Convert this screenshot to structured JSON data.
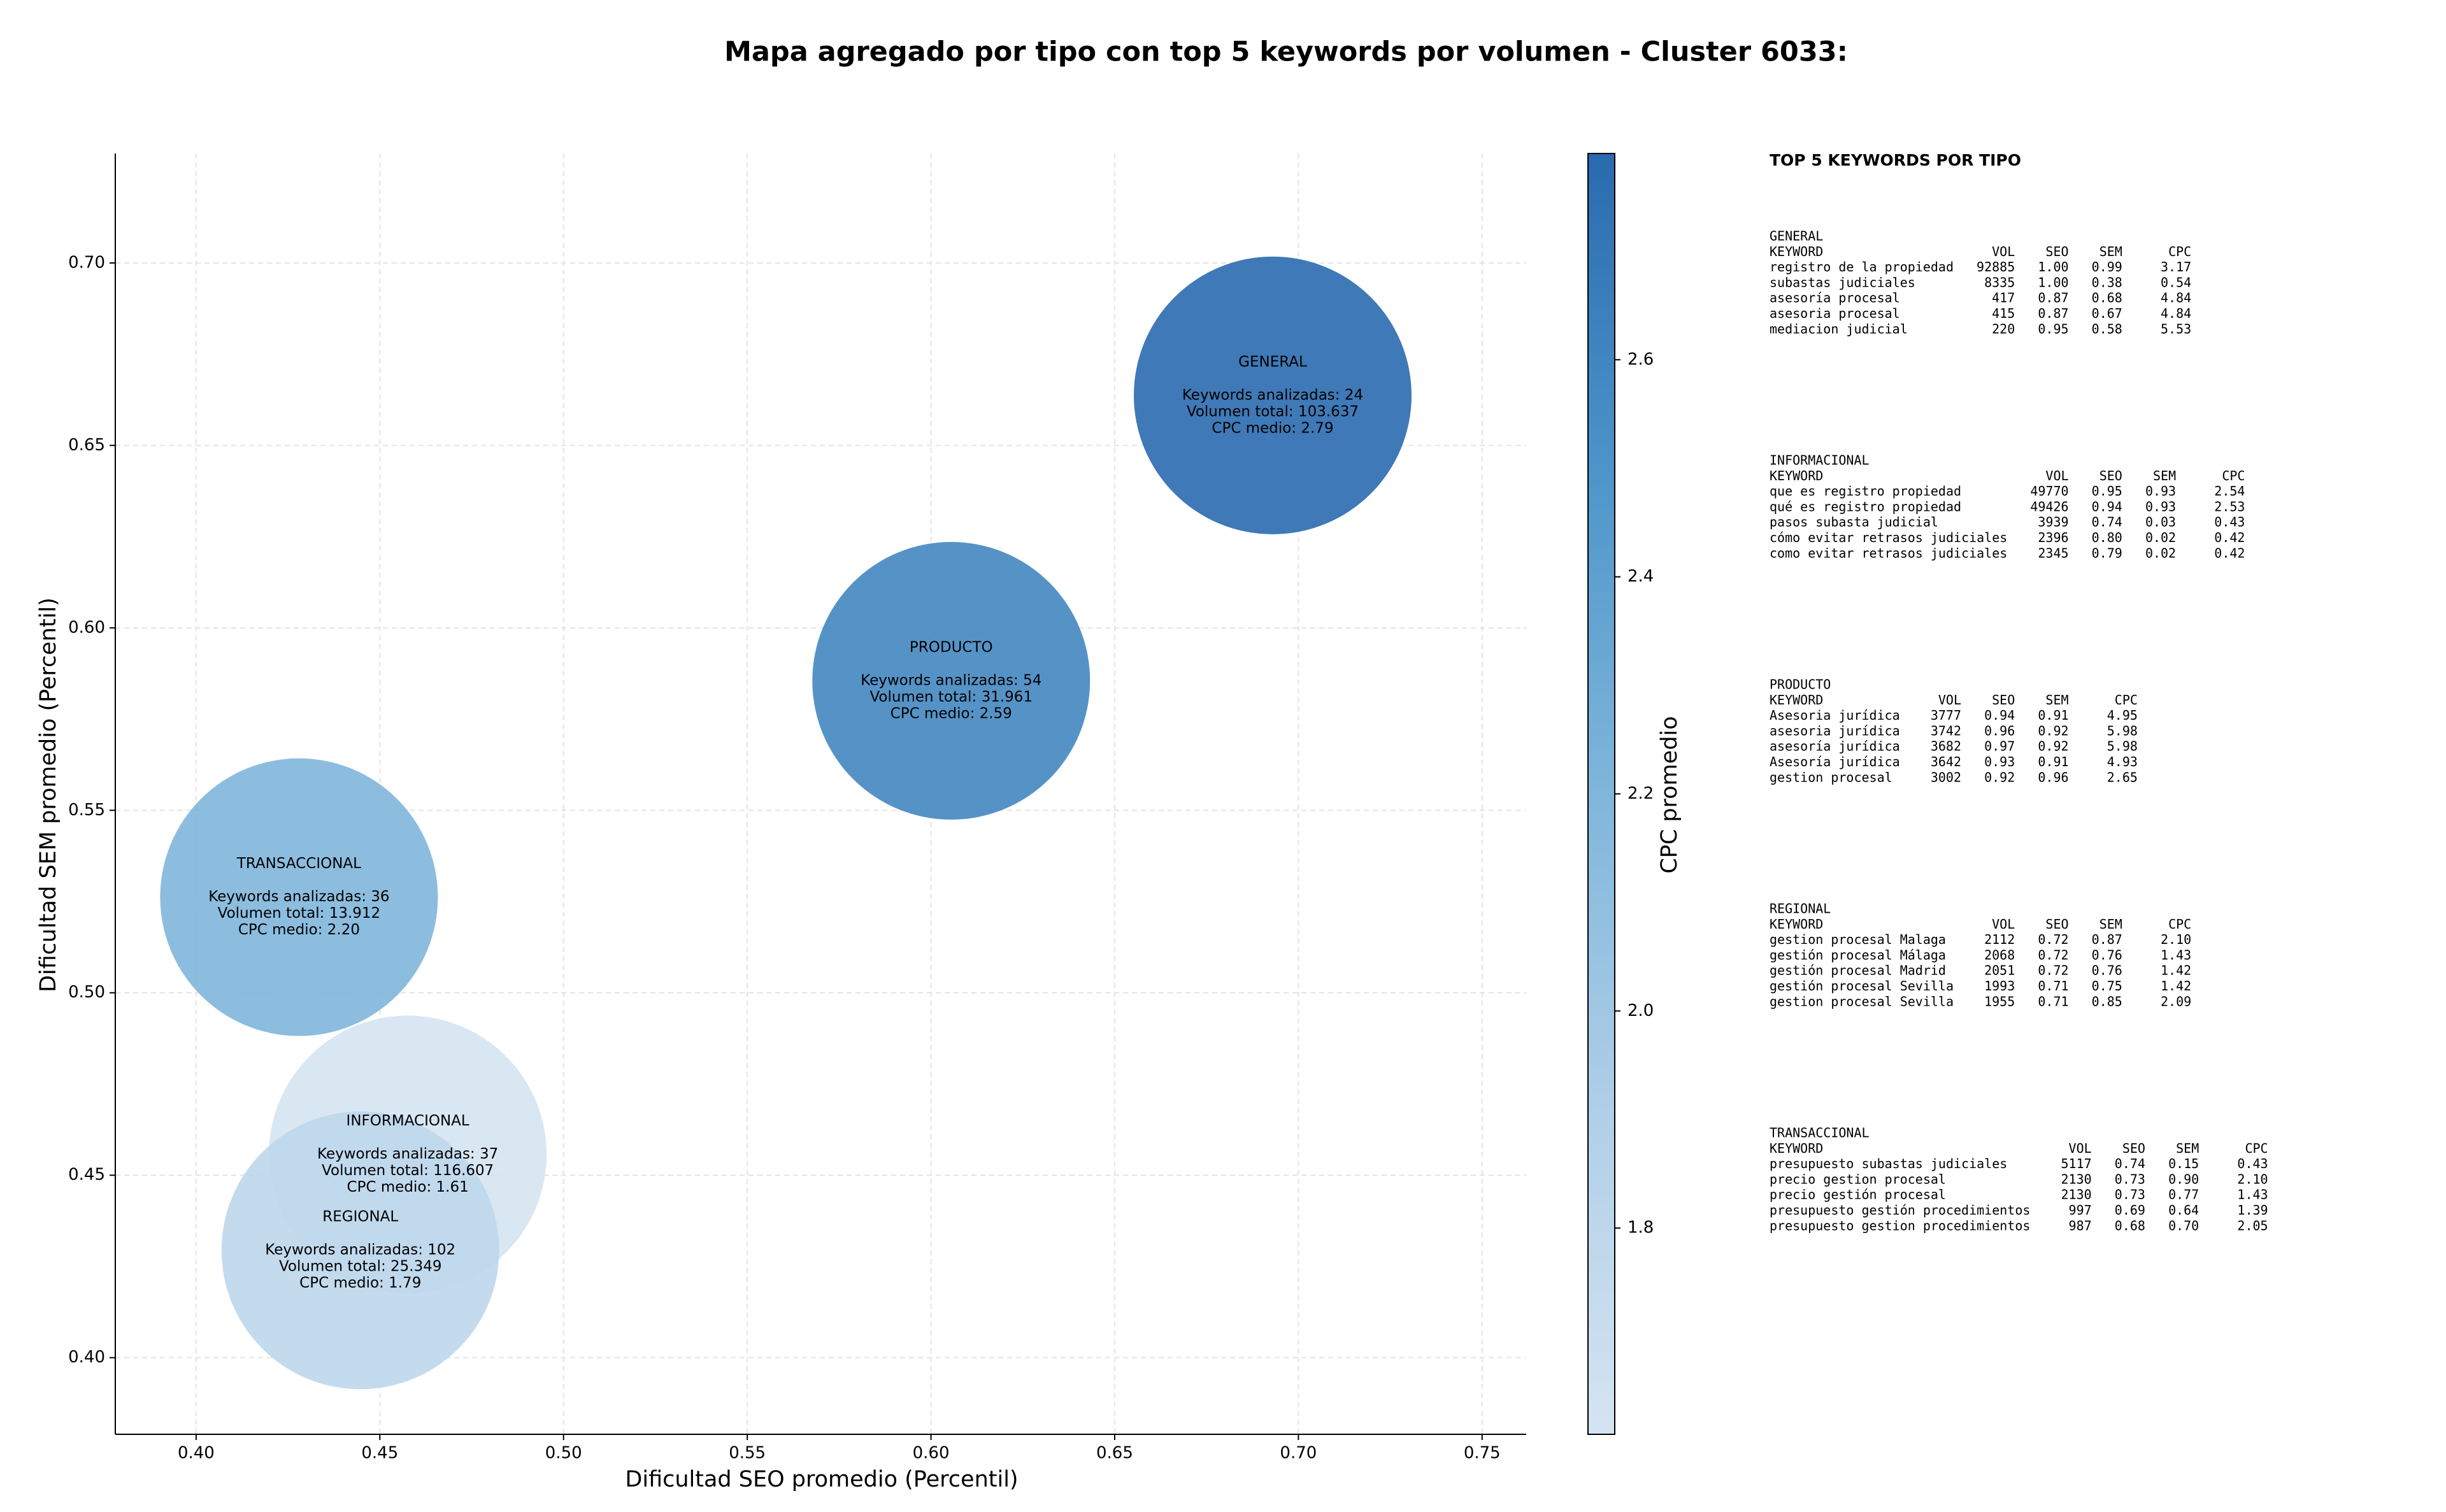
{
  "chart_data": {
    "type": "scatter",
    "title": "Mapa agregado por tipo con top 5 keywords por volumen - Cluster 6033:",
    "x_label": "Dificultad SEO promedio (Percentil)",
    "y_label": "Dificultad SEM promedio (Percentil)",
    "colorbar_label": "CPC promedio",
    "categories": [
      "GENERAL",
      "INFORMACIONAL",
      "PRODUCTO",
      "REGIONAL",
      "TRANSACCIONAL"
    ],
    "x": [
      0.693,
      0.4576,
      0.6055,
      0.4447,
      0.428
    ],
    "values": [
      0.6637,
      0.4557,
      0.5855,
      0.4294,
      0.5262
    ],
    "cpc": [
      2.79,
      1.61,
      2.59,
      1.79,
      2.2
    ],
    "annotations": [
      [
        "Keywords analizadas: 24",
        "Volumen total: 103.637",
        "CPC medio: 2.79"
      ],
      [
        "Keywords analizadas: 37",
        "Volumen total: 116.607",
        "CPC medio: 1.61"
      ],
      [
        "Keywords analizadas: 54",
        "Volumen total: 31.961",
        "CPC medio: 2.59"
      ],
      [
        "Keywords analizadas: 102",
        "Volumen total: 25.349",
        "CPC medio: 1.79"
      ],
      [
        "Keywords analizadas: 36",
        "Volumen total: 13.912",
        "CPC medio: 2.20"
      ]
    ],
    "xlim": [
      0.378,
      0.762
    ],
    "ylim": [
      0.379,
      0.73
    ],
    "clim": [
      1.61,
      2.79
    ],
    "xticks": [
      {
        "value": 0.4,
        "label": "0.40"
      },
      {
        "value": 0.45,
        "label": "0.45"
      },
      {
        "value": 0.5,
        "label": "0.50"
      },
      {
        "value": 0.55,
        "label": "0.55"
      },
      {
        "value": 0.6,
        "label": "0.60"
      },
      {
        "value": 0.65,
        "label": "0.65"
      },
      {
        "value": 0.7,
        "label": "0.70"
      },
      {
        "value": 0.75,
        "label": "0.75"
      }
    ],
    "yticks": [
      {
        "value": 0.4,
        "label": "0.40"
      },
      {
        "value": 0.45,
        "label": "0.45"
      },
      {
        "value": 0.5,
        "label": "0.50"
      },
      {
        "value": 0.55,
        "label": "0.55"
      },
      {
        "value": 0.6,
        "label": "0.60"
      },
      {
        "value": 0.65,
        "label": "0.65"
      },
      {
        "value": 0.7,
        "label": "0.70"
      }
    ],
    "cticks": [
      1.8,
      {
        "value": 2.0,
        "label": "2.0"
      },
      2.2,
      2.4,
      2.6
    ],
    "grid": true,
    "colormap": [
      "#d5e4f2",
      "#b0cfe8",
      "#80b6db",
      "#4d95ca",
      "#2a6aaf"
    ]
  },
  "panel": {
    "title": "TOP 5 KEYWORDS POR TIPO",
    "columns": [
      "KEYWORD",
      "VOL",
      "SEO",
      "SEM",
      "CPC"
    ],
    "blocks": [
      {
        "name": "GENERAL",
        "rows": [
          [
            "registro de la propiedad",
            "92885",
            "1.00",
            "0.99",
            "3.17"
          ],
          [
            "subastas judiciales",
            "8335",
            "1.00",
            "0.38",
            "0.54"
          ],
          [
            "asesoría procesal",
            "417",
            "0.87",
            "0.68",
            "4.84"
          ],
          [
            "asesoria procesal",
            "415",
            "0.87",
            "0.67",
            "4.84"
          ],
          [
            "mediacion judicial",
            "220",
            "0.95",
            "0.58",
            "5.53"
          ]
        ]
      },
      {
        "name": "INFORMACIONAL",
        "rows": [
          [
            "que es registro propiedad",
            "49770",
            "0.95",
            "0.93",
            "2.54"
          ],
          [
            "qué es registro propiedad",
            "49426",
            "0.94",
            "0.93",
            "2.53"
          ],
          [
            "pasos subasta judicial",
            "3939",
            "0.74",
            "0.03",
            "0.43"
          ],
          [
            "cómo evitar retrasos judiciales",
            "2396",
            "0.80",
            "0.02",
            "0.42"
          ],
          [
            "como evitar retrasos judiciales",
            "2345",
            "0.79",
            "0.02",
            "0.42"
          ]
        ]
      },
      {
        "name": "PRODUCTO",
        "rows": [
          [
            "Asesoria jurídica",
            "3777",
            "0.94",
            "0.91",
            "4.95"
          ],
          [
            "asesoria jurídica",
            "3742",
            "0.96",
            "0.92",
            "5.98"
          ],
          [
            "asesoría jurídica",
            "3682",
            "0.97",
            "0.92",
            "5.98"
          ],
          [
            "Asesoría jurídica",
            "3642",
            "0.93",
            "0.91",
            "4.93"
          ],
          [
            "gestion procesal",
            "3002",
            "0.92",
            "0.96",
            "2.65"
          ]
        ]
      },
      {
        "name": "REGIONAL",
        "rows": [
          [
            "gestion procesal Malaga",
            "2112",
            "0.72",
            "0.87",
            "2.10"
          ],
          [
            "gestión procesal Málaga",
            "2068",
            "0.72",
            "0.76",
            "1.43"
          ],
          [
            "gestión procesal Madrid",
            "2051",
            "0.72",
            "0.76",
            "1.42"
          ],
          [
            "gestión procesal Sevilla",
            "1993",
            "0.71",
            "0.75",
            "1.42"
          ],
          [
            "gestion procesal Sevilla",
            "1955",
            "0.71",
            "0.85",
            "2.09"
          ]
        ]
      },
      {
        "name": "TRANSACCIONAL",
        "rows": [
          [
            "presupuesto subastas judiciales",
            "5117",
            "0.74",
            "0.15",
            "0.43"
          ],
          [
            "precio gestion procesal",
            "2130",
            "0.73",
            "0.90",
            "2.10"
          ],
          [
            "precio gestión procesal",
            "2130",
            "0.73",
            "0.77",
            "1.43"
          ],
          [
            "presupuesto gestión procedimientos",
            "997",
            "0.69",
            "0.64",
            "1.39"
          ],
          [
            "presupuesto gestion procedimientos",
            "987",
            "0.68",
            "0.70",
            "2.05"
          ]
        ]
      }
    ]
  }
}
